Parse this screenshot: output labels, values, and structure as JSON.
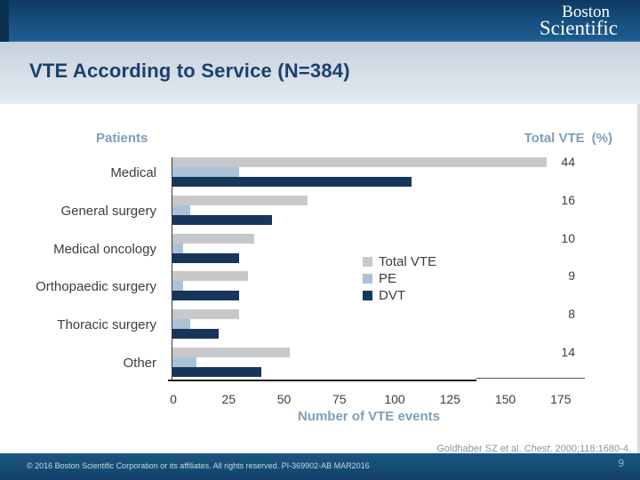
{
  "header": {
    "logo_line1": "Boston",
    "logo_line2": "Scientific"
  },
  "title": "VTE According to Service (N=384)",
  "chart_header": {
    "left": "Patients",
    "right_label": "Total VTE",
    "right_unit": "(%)"
  },
  "chart_data": {
    "type": "bar",
    "orientation": "horizontal",
    "categories": [
      "Medical",
      "General surgery",
      "Medical oncology",
      "Orthopaedic surgery",
      "Thoracic surgery",
      "Other"
    ],
    "series": [
      {
        "name": "Total VTE",
        "color": "#c7c8ca",
        "values": [
          169,
          61,
          37,
          34,
          30,
          53
        ]
      },
      {
        "name": "PE",
        "color": "#a9c2d8",
        "values": [
          30,
          8,
          5,
          5,
          8,
          11
        ]
      },
      {
        "name": "DVT",
        "color": "#16365c",
        "values": [
          108,
          45,
          30,
          30,
          21,
          40
        ]
      }
    ],
    "total_vte_pct": [
      44,
      16,
      10,
      9,
      8,
      14
    ],
    "xlabel": "Number of VTE events",
    "xlim": [
      0,
      175
    ],
    "xticks": [
      0,
      25,
      50,
      75,
      100,
      125,
      150,
      175
    ],
    "legend": [
      "Total VTE",
      "PE",
      "DVT"
    ],
    "legend_position": "center-right",
    "grid": false
  },
  "citation": {
    "authors": "Goldhaber SZ et al. ",
    "journal": "Chest",
    "rest": ". 2000;118:1680-4."
  },
  "footer": {
    "copyright": "© 2016 Boston Scientific Corporation or its affiliates. All rights reserved. PI-369902-AB MAR2016",
    "page_number": "9"
  }
}
